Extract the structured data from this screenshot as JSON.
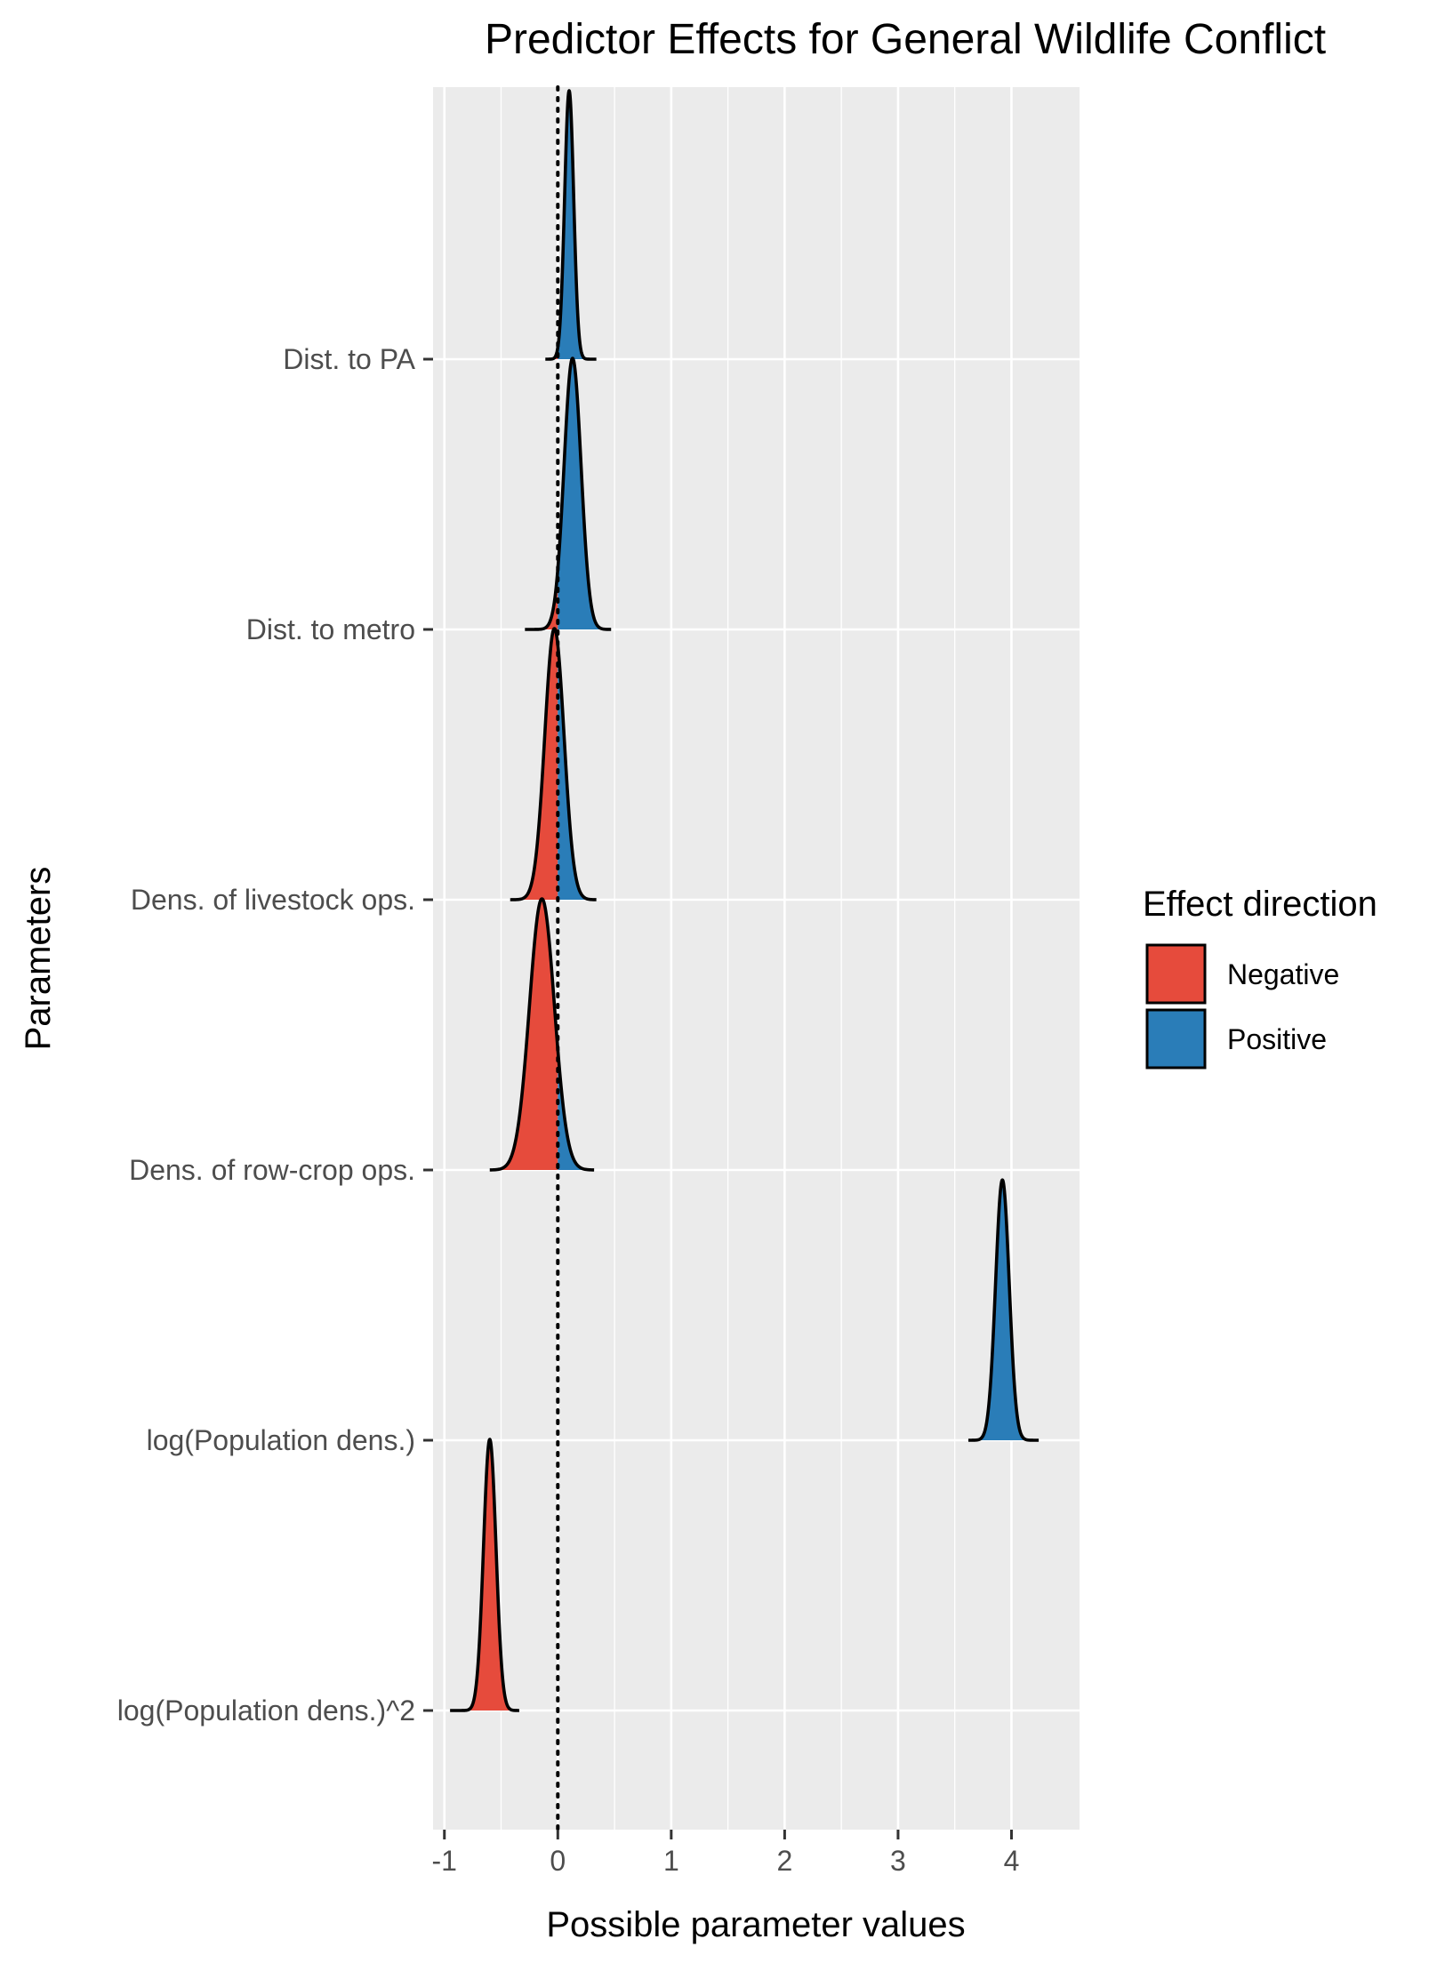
{
  "chart_data": {
    "type": "ridgeline",
    "title": "Predictor Effects for General Wildlife Conflict",
    "xlabel": "Possible parameter values",
    "ylabel": "Parameters",
    "xlim": [
      -1.1,
      4.6
    ],
    "x_ticks": [
      -1,
      0,
      1,
      2,
      3,
      4
    ],
    "x_tick_labels": [
      "-1",
      "0",
      "1",
      "2",
      "3",
      "4"
    ],
    "reference_line": {
      "x": 0,
      "style": "dotted"
    },
    "grid": true,
    "legend": {
      "title": "Effect direction",
      "position": "right",
      "entries": [
        {
          "label": "Negative",
          "color": "#E64B3C"
        },
        {
          "label": "Positive",
          "color": "#2A7DB8"
        }
      ]
    },
    "categories": [
      "Dist. to PA",
      "Dist. to metro",
      "Dens. of livestock ops.",
      "Dens. of row-crop ops.",
      "log(Population dens.)",
      "log(Population dens.)^2"
    ],
    "distributions": [
      {
        "parameter": "Dist. to PA",
        "mean": 0.1,
        "sd": 0.04,
        "from": -0.11,
        "to": 0.34,
        "rel_height": 0.99
      },
      {
        "parameter": "Dist. to metro",
        "mean": 0.13,
        "sd": 0.075,
        "from": -0.29,
        "to": 0.47,
        "rel_height": 1.0
      },
      {
        "parameter": "Dens. of livestock ops.",
        "mean": -0.03,
        "sd": 0.085,
        "from": -0.42,
        "to": 0.34,
        "rel_height": 1.0
      },
      {
        "parameter": "Dens. of row-crop ops.",
        "mean": -0.14,
        "sd": 0.11,
        "from": -0.6,
        "to": 0.32,
        "rel_height": 1.0
      },
      {
        "parameter": "log(Population dens.)",
        "mean": 3.92,
        "sd": 0.06,
        "from": 3.62,
        "to": 4.24,
        "rel_height": 0.96
      },
      {
        "parameter": "log(Population dens.)^2",
        "mean": -0.6,
        "sd": 0.055,
        "from": -0.95,
        "to": -0.34,
        "rel_height": 1.0
      }
    ]
  }
}
